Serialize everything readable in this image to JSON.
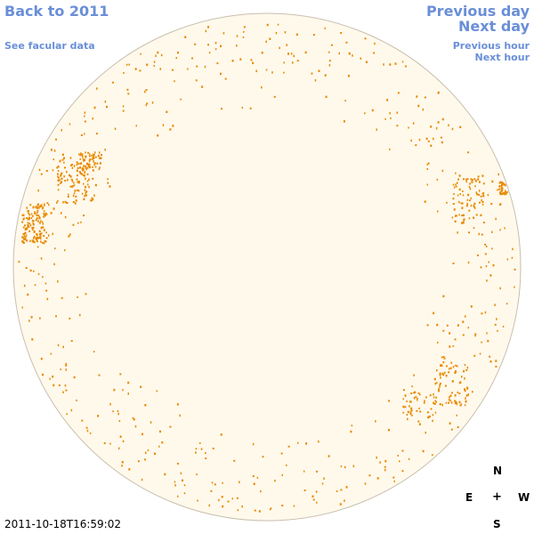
{
  "nav": {
    "back_label": "Back to 2011",
    "facular_label": "See facular data",
    "prev_day_label": "Previous day",
    "next_day_label": "Next day",
    "prev_hour_label": "Previous hour",
    "next_hour_label": "Next hour"
  },
  "timestamp": "2011-10-18T16:59:02",
  "compass": {
    "n": "N",
    "s": "S",
    "e": "E",
    "w": "W",
    "center": "+"
  },
  "colors": {
    "disk_fill": "#fff9ec",
    "disk_edge": "#c9bfae",
    "feature": "#e88a00",
    "link": "#6a8fd8"
  }
}
